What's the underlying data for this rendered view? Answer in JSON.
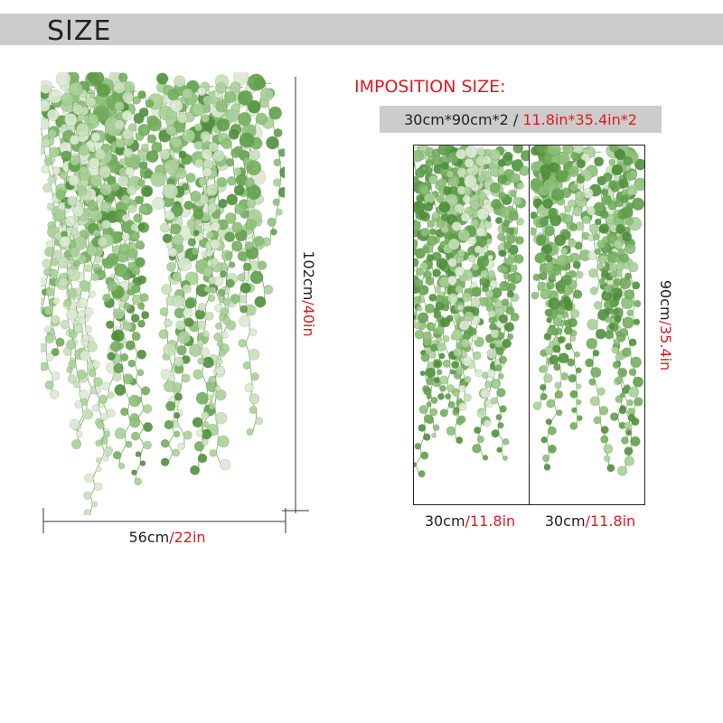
{
  "header": {
    "title": "SIZE"
  },
  "left": {
    "height": {
      "metric": "102cm",
      "imperial": "/40in"
    },
    "width": {
      "metric": "56cm",
      "imperial": "/22in"
    }
  },
  "imposition": {
    "title": "IMPOSITION SIZE:",
    "size": {
      "metric": "30cm*90cm*2 /",
      "imperial": "11.8in*35.4in*2"
    },
    "panels": [
      {
        "width": {
          "metric": "30cm",
          "imperial": "/11.8in"
        }
      },
      {
        "width": {
          "metric": "30cm",
          "imperial": "/11.8in"
        }
      }
    ],
    "height": {
      "metric": "90cm",
      "imperial": "/35.4in"
    }
  }
}
